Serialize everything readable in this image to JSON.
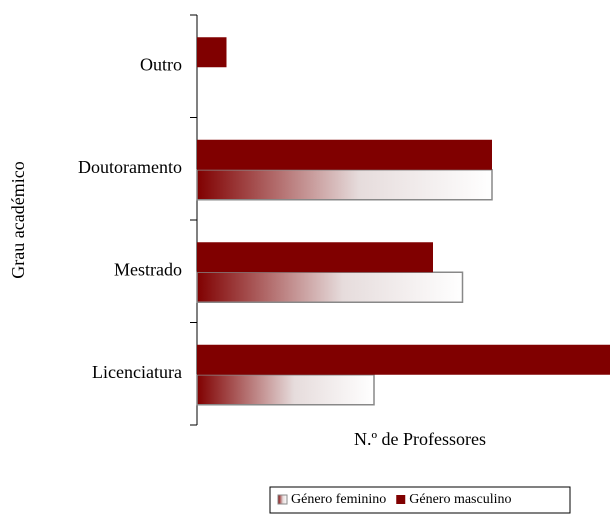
{
  "chart_data": {
    "type": "bar",
    "orientation": "horizontal",
    "y_label": "Grau académico",
    "x_label": "N.º de Professores",
    "categories": [
      "Outro",
      "Doutoramento",
      "Mestrado",
      "Licenciatura"
    ],
    "series": [
      {
        "name": "Género feminino",
        "color": "#800000",
        "fill": "gradient",
        "values": [
          0,
          10,
          9,
          6
        ]
      },
      {
        "name": "Género masculino",
        "color": "#800000",
        "values": [
          1,
          10,
          8,
          14
        ]
      }
    ],
    "xlim": [
      0,
      14
    ],
    "legend": "bottom"
  }
}
